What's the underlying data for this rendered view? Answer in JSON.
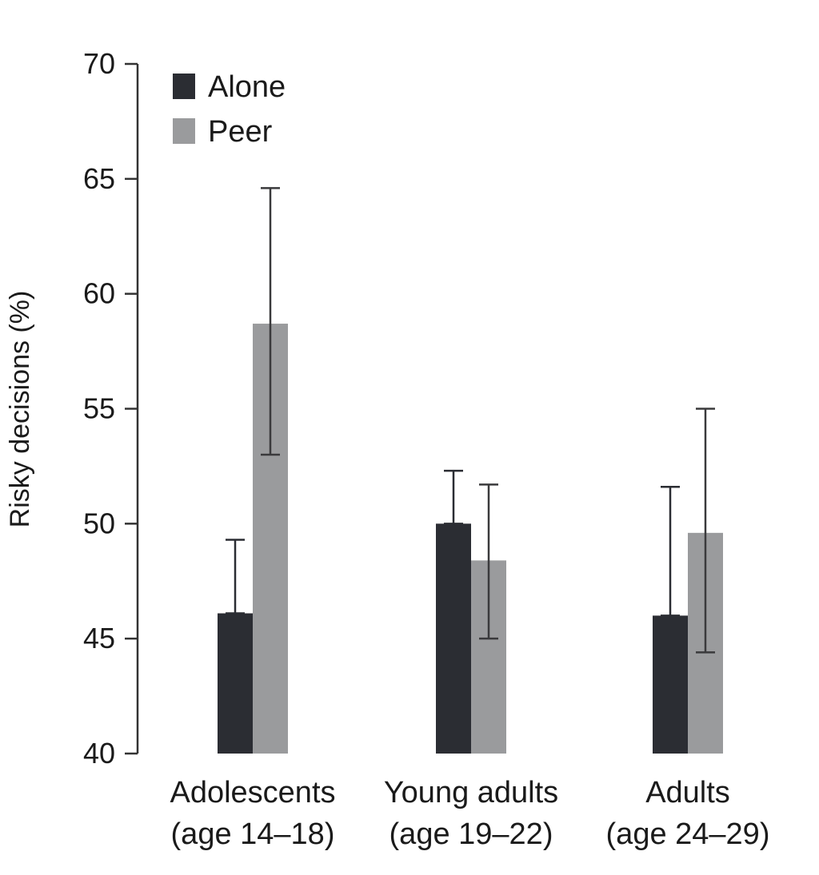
{
  "chart_data": {
    "type": "bar",
    "title": "",
    "xlabel": "",
    "ylabel": "Risky decisions (%)",
    "ylim": [
      40,
      70
    ],
    "yticks": [
      40,
      45,
      50,
      55,
      60,
      65,
      70
    ],
    "grid": false,
    "legend_position": "top-left",
    "categories": [
      [
        "Adolescents",
        "(age 14–18)"
      ],
      [
        "Young adults",
        "(age 19–22)"
      ],
      [
        "Adults",
        "(age 24–29)"
      ]
    ],
    "series": [
      {
        "name": "Alone",
        "color": "#2b2d33",
        "values": [
          46.1,
          50.0,
          46.0
        ],
        "error": [
          [
            46.1,
            49.3
          ],
          [
            50.0,
            52.3
          ],
          [
            46.0,
            51.6
          ]
        ]
      },
      {
        "name": "Peer",
        "color": "#9a9b9d",
        "values": [
          58.7,
          48.4,
          49.6
        ],
        "error": [
          [
            53.0,
            64.6
          ],
          [
            45.0,
            51.7
          ],
          [
            44.4,
            55.0
          ]
        ]
      }
    ]
  }
}
